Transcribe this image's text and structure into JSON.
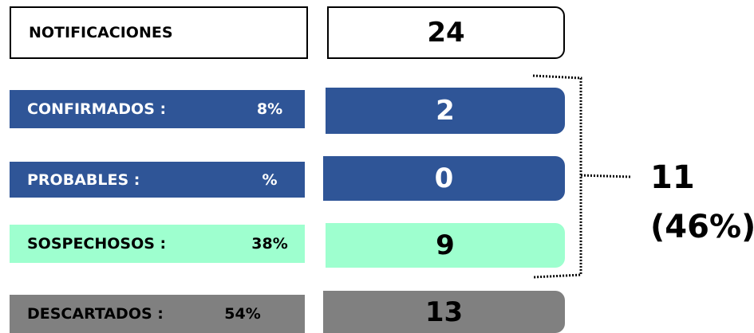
{
  "header": {
    "label": "NOTIFICACIONES",
    "value": "24"
  },
  "rows": [
    {
      "label": "CONFIRMADOS :",
      "percent": "8%",
      "value": "2"
    },
    {
      "label": "PROBABLES :",
      "percent": "%",
      "value": "0"
    },
    {
      "label": "SOSPECHOSOS :",
      "percent": "38%",
      "value": "9"
    },
    {
      "label": "DESCARTADOS :",
      "percent": "54%",
      "value": "13"
    }
  ],
  "summary": {
    "total": "11",
    "percent": "(46%)"
  }
}
